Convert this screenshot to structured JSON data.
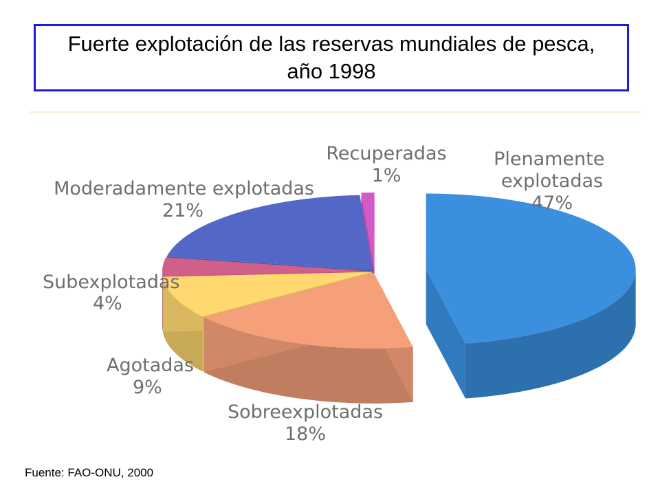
{
  "chart_data": {
    "type": "pie",
    "title": "Fuerte explotación de las reservas mundiales de pesca, año 1998",
    "legend": "none",
    "slices": [
      {
        "label": "Plenamente explotadas",
        "value": 47,
        "value_label": "47%",
        "color": "#3a8fdf",
        "exploded": true
      },
      {
        "label": "Sobreexplotadas",
        "value": 18,
        "value_label": "18%",
        "color": "#f6a07a"
      },
      {
        "label": "Agotadas",
        "value": 9,
        "value_label": "9%",
        "color": "#ffd970"
      },
      {
        "label": "Subexplotadas",
        "value": 4,
        "value_label": "4%",
        "color": "#d05f8a"
      },
      {
        "label": "Moderadamente explotadas",
        "value": 21,
        "value_label": "21%",
        "color": "#5368c6"
      },
      {
        "label": "Recuperadas",
        "value": 1,
        "value_label": "1%",
        "color": "#d45ac8",
        "exploded": true
      }
    ]
  },
  "source": "Fuente: FAO-ONU, 2000"
}
